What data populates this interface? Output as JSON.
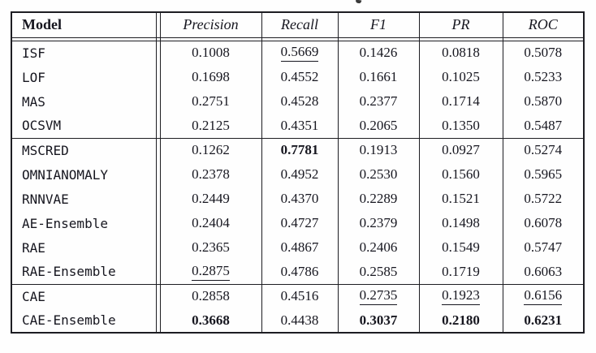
{
  "header": {
    "model_label": "Model",
    "metrics": [
      "Precision",
      "Recall",
      "F1",
      "PR",
      "ROC"
    ]
  },
  "groups": [
    {
      "name": "classical-baselines",
      "rows": [
        {
          "model": "ISF",
          "cells": [
            {
              "v": "0.1008"
            },
            {
              "v": "0.5669",
              "u": true
            },
            {
              "v": "0.1426"
            },
            {
              "v": "0.0818"
            },
            {
              "v": "0.5078"
            }
          ]
        },
        {
          "model": "LOF",
          "cells": [
            {
              "v": "0.1698"
            },
            {
              "v": "0.4552"
            },
            {
              "v": "0.1661"
            },
            {
              "v": "0.1025"
            },
            {
              "v": "0.5233"
            }
          ]
        },
        {
          "model": "MAS",
          "cells": [
            {
              "v": "0.2751"
            },
            {
              "v": "0.4528"
            },
            {
              "v": "0.2377"
            },
            {
              "v": "0.1714"
            },
            {
              "v": "0.5870"
            }
          ]
        },
        {
          "model": "OCSVM",
          "cells": [
            {
              "v": "0.2125"
            },
            {
              "v": "0.4351"
            },
            {
              "v": "0.2065"
            },
            {
              "v": "0.1350"
            },
            {
              "v": "0.5487"
            }
          ]
        }
      ]
    },
    {
      "name": "deep-baselines",
      "rows": [
        {
          "model": "MSCRED",
          "cells": [
            {
              "v": "0.1262"
            },
            {
              "v": "0.7781",
              "b": true
            },
            {
              "v": "0.1913"
            },
            {
              "v": "0.0927"
            },
            {
              "v": "0.5274"
            }
          ]
        },
        {
          "model": "OMNIANOMALY",
          "cells": [
            {
              "v": "0.2378"
            },
            {
              "v": "0.4952"
            },
            {
              "v": "0.2530"
            },
            {
              "v": "0.1560"
            },
            {
              "v": "0.5965"
            }
          ]
        },
        {
          "model": "RNNVAE",
          "cells": [
            {
              "v": "0.2449"
            },
            {
              "v": "0.4370"
            },
            {
              "v": "0.2289"
            },
            {
              "v": "0.1521"
            },
            {
              "v": "0.5722"
            }
          ]
        },
        {
          "model": "AE-Ensemble",
          "cells": [
            {
              "v": "0.2404"
            },
            {
              "v": "0.4727"
            },
            {
              "v": "0.2379"
            },
            {
              "v": "0.1498"
            },
            {
              "v": "0.6078"
            }
          ]
        },
        {
          "model": "RAE",
          "cells": [
            {
              "v": "0.2365"
            },
            {
              "v": "0.4867"
            },
            {
              "v": "0.2406"
            },
            {
              "v": "0.1549"
            },
            {
              "v": "0.5747"
            }
          ]
        },
        {
          "model": "RAE-Ensemble",
          "cells": [
            {
              "v": "0.2875",
              "u": true
            },
            {
              "v": "0.4786"
            },
            {
              "v": "0.2585"
            },
            {
              "v": "0.1719"
            },
            {
              "v": "0.6063"
            }
          ]
        }
      ]
    },
    {
      "name": "proposed",
      "rows": [
        {
          "model": "CAE",
          "cells": [
            {
              "v": "0.2858"
            },
            {
              "v": "0.4516"
            },
            {
              "v": "0.2735",
              "u": true
            },
            {
              "v": "0.1923",
              "u": true
            },
            {
              "v": "0.6156",
              "u": true
            }
          ]
        },
        {
          "model": "CAE-Ensemble",
          "cells": [
            {
              "v": "0.3668",
              "b": true
            },
            {
              "v": "0.4438"
            },
            {
              "v": "0.3037",
              "b": true
            },
            {
              "v": "0.2180",
              "b": true
            },
            {
              "v": "0.6231",
              "b": true
            }
          ]
        }
      ]
    }
  ],
  "colors": {
    "text": "#16161f",
    "rule": "#1d1d22",
    "background": "#fefefe"
  }
}
